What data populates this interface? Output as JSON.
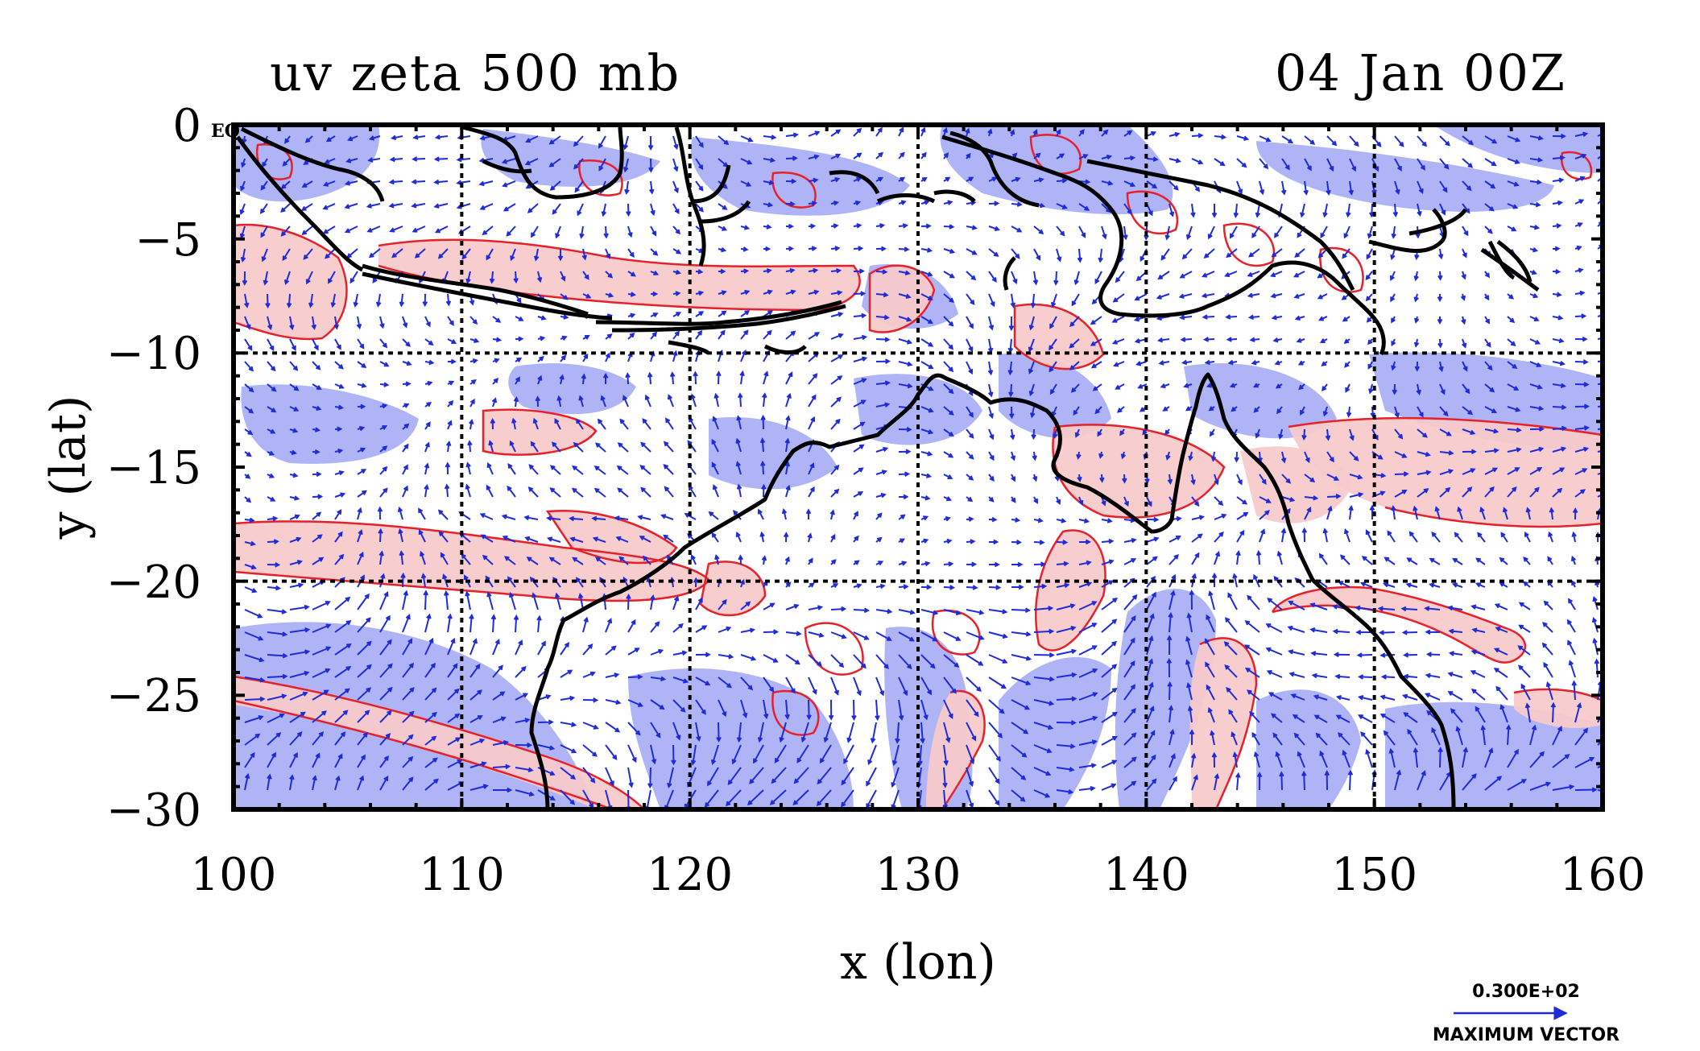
{
  "title_left": "uv zeta 500 mb",
  "title_right": "04 Jan 00Z",
  "map": {
    "lon_range": [
      100,
      160
    ],
    "lat_range": [
      -30,
      0
    ],
    "x_ticks": [
      "100",
      "110",
      "120",
      "130",
      "140",
      "150",
      "160"
    ],
    "y_ticks": [
      "0",
      "−5",
      "−10",
      "−15",
      "−20",
      "−25",
      "−30"
    ],
    "xlabel": "x (lon)",
    "ylabel": "y (lat)",
    "eq_label": "EQ",
    "gridlines_lon": [
      110,
      120,
      130,
      140,
      150
    ],
    "gridlines_lat": [
      -10,
      -20
    ]
  },
  "reference_vector": {
    "magnitude_label": "0.300E+02",
    "caption": "MAXIMUM VECTOR"
  },
  "colors": {
    "positive_vorticity_fill": "#f7caca",
    "positive_vorticity_contour": "#e8202a",
    "negative_vorticity_fill": "#aab0f4",
    "wind_vectors": "#1f2bd9",
    "coastline": "#000000"
  },
  "chart_data": {
    "type": "map",
    "title": "uv zeta 500 mb",
    "subtitle": "04 Jan 00Z",
    "xlabel": "x (lon)",
    "ylabel": "y (lat)",
    "xlim": [
      100,
      160
    ],
    "ylim": [
      -30,
      0
    ],
    "x_ticks": [
      100,
      110,
      120,
      130,
      140,
      150,
      160
    ],
    "y_ticks": [
      0,
      -5,
      -10,
      -15,
      -20,
      -25,
      -30
    ],
    "grid": true,
    "layers": [
      "relative vorticity (zeta) shading",
      "vorticity contours",
      "wind vectors (u, v)",
      "coastlines"
    ],
    "reference_vector": "0.300E+02"
  }
}
